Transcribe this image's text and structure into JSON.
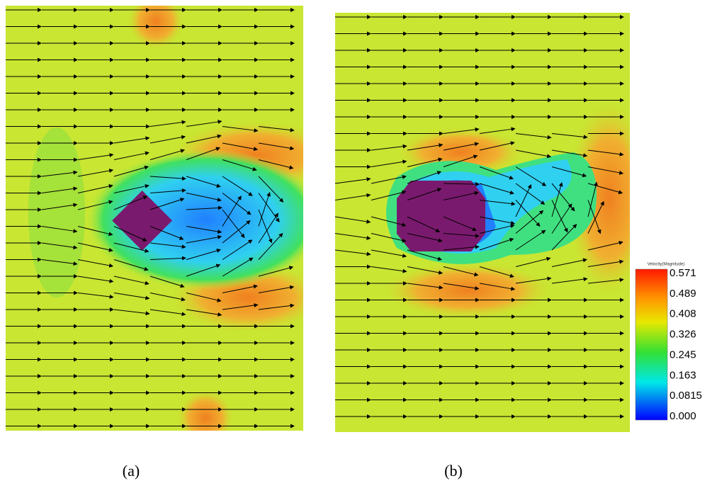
{
  "panels": [
    {
      "label": "(a)"
    },
    {
      "label": "(b)"
    }
  ],
  "colorbar": {
    "title": "Velocity(Magnitude)",
    "labels": [
      "0.571",
      "0.489",
      "0.408",
      "0.326",
      "0.245",
      "0.163",
      "0.0815",
      "0.000"
    ]
  }
}
